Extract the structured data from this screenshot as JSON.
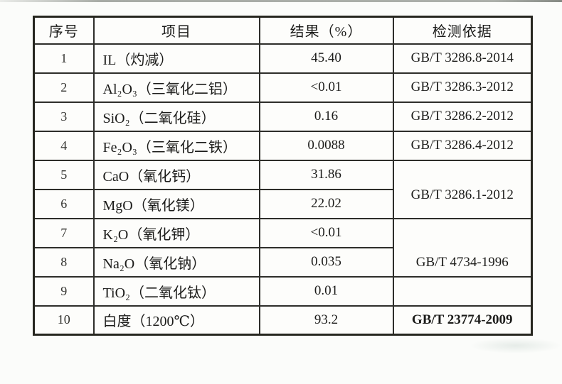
{
  "table": {
    "columns": [
      "序号",
      "项目",
      "结果（%）",
      "检测依据"
    ],
    "rows": [
      {
        "no": "1",
        "item": "IL（灼减）",
        "result": "45.40",
        "standard": "GB/T 3286.8-2014"
      },
      {
        "no": "2",
        "item": "Al₂O₃（三氧化二铝）",
        "result": "<0.01",
        "standard": "GB/T 3286.3-2012"
      },
      {
        "no": "3",
        "item": "SiO₂（二氧化硅）",
        "result": "0.16",
        "standard": "GB/T 3286.2-2012"
      },
      {
        "no": "4",
        "item": "Fe₂O₃（三氧化二铁）",
        "result": "0.0088",
        "standard": "GB/T 3286.4-2012"
      },
      {
        "no": "5",
        "item": "CaO（氧化钙）",
        "result": "31.86",
        "standard": "GB/T 3286.1-2012"
      },
      {
        "no": "6",
        "item": "MgO（氧化镁）",
        "result": "22.02"
      },
      {
        "no": "7",
        "item": "K₂O（氧化钾）",
        "result": "<0.01",
        "standard": "GB/T 4734-1996"
      },
      {
        "no": "8",
        "item": "Na₂O（氧化钠）",
        "result": "0.035"
      },
      {
        "no": "9",
        "item": "TiO₂（二氧化钛）",
        "result": "0.01",
        "standard": ""
      },
      {
        "no": "10",
        "item": "白度（1200℃）",
        "result": "93.2",
        "standard": "GB/T 23774-2009"
      }
    ]
  }
}
